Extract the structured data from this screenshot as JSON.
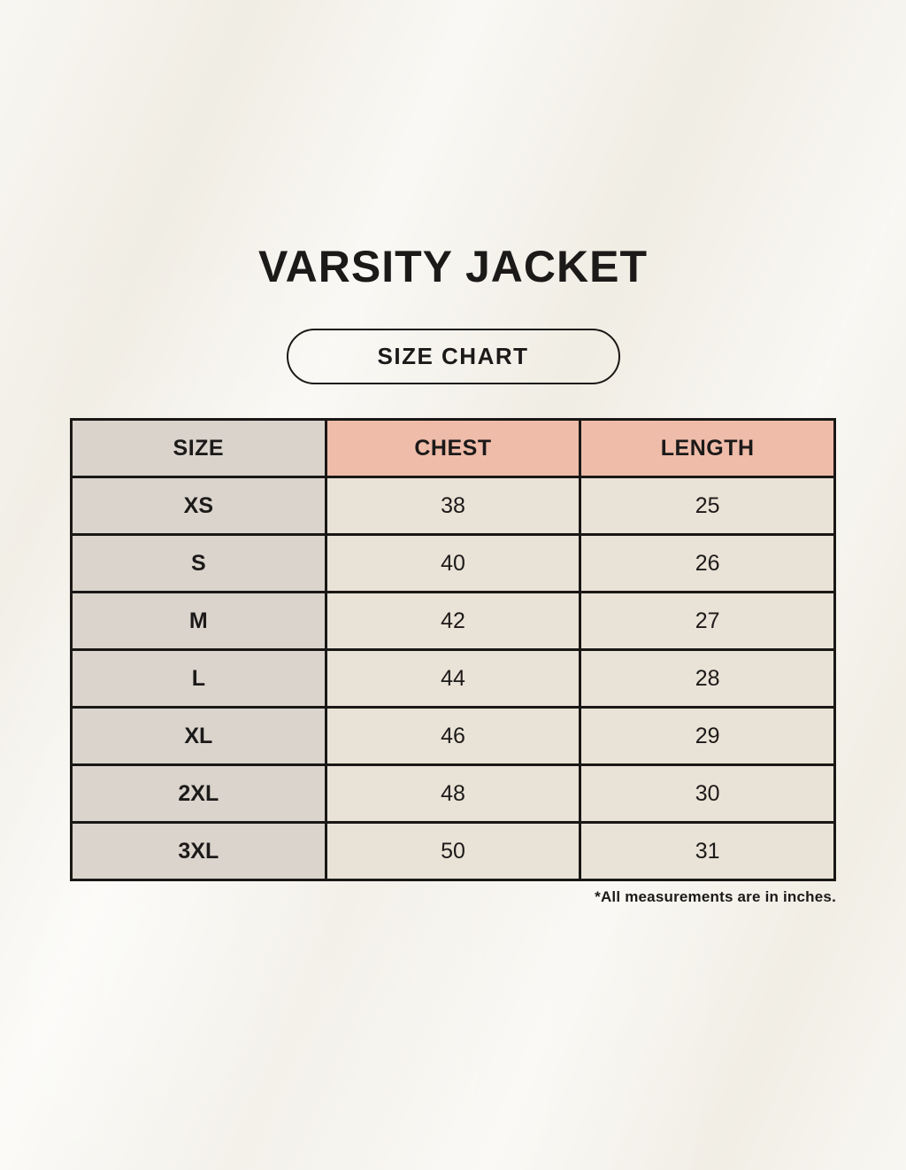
{
  "page": {
    "title": "VARSITY JACKET",
    "badge_label": "SIZE CHART",
    "footnote": "*All measurements are in inches."
  },
  "table": {
    "columns": [
      "SIZE",
      "CHEST",
      "LENGTH"
    ],
    "rows": [
      [
        "XS",
        "38",
        "25"
      ],
      [
        "S",
        "40",
        "26"
      ],
      [
        "M",
        "42",
        "27"
      ],
      [
        "L",
        "44",
        "28"
      ],
      [
        "XL",
        "46",
        "29"
      ],
      [
        "2XL",
        "48",
        "30"
      ],
      [
        "3XL",
        "50",
        "31"
      ]
    ]
  },
  "colors": {
    "background": "#f3f0e8",
    "header_size_bg": "#d9d3cc",
    "header_measure_bg": "#efbca9",
    "cell_size_bg": "#dbd4cd",
    "cell_value_bg": "#e9e2d6",
    "border": "#1a1816",
    "text": "#1c1a19"
  }
}
